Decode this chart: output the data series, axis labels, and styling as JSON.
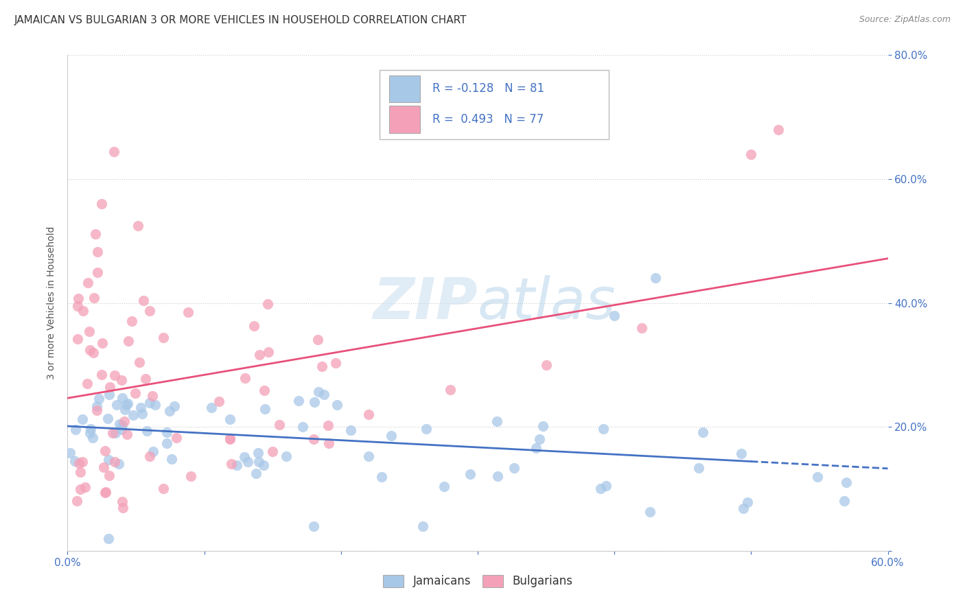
{
  "title": "JAMAICAN VS BULGARIAN 3 OR MORE VEHICLES IN HOUSEHOLD CORRELATION CHART",
  "source": "Source: ZipAtlas.com",
  "ylabel": "3 or more Vehicles in Household",
  "legend_label1": "Jamaicans",
  "legend_label2": "Bulgarians",
  "watermark": "ZIPAtlas",
  "r_jamaican": "-0.128",
  "n_jamaican": "81",
  "r_bulgarian": "0.493",
  "n_bulgarian": "77",
  "blue_color": "#a8c8e8",
  "pink_color": "#f4a0b8",
  "blue_line_color": "#4472c4",
  "pink_line_color": "#e8507a",
  "xlim": [
    0.0,
    0.6
  ],
  "ylim": [
    0.0,
    0.8
  ],
  "legend_text_color": "#4472c4",
  "watermark_color": "#dde8f0",
  "bg_color": "#ffffff",
  "grid_color": "#cccccc",
  "title_color": "#333333",
  "source_color": "#888888",
  "ylabel_color": "#555555"
}
